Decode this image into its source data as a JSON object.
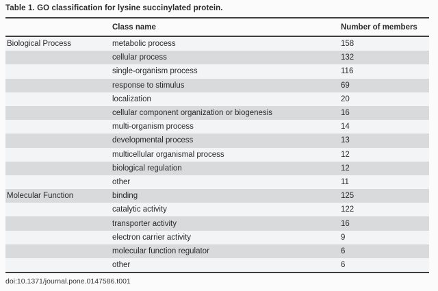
{
  "table": {
    "title": "Table 1. GO classification for lysine succinylated protein.",
    "columns": {
      "category": "",
      "class_name": "Class name",
      "members": "Number of members"
    },
    "rows": [
      {
        "category": "Biological Process",
        "class_name": "metabolic process",
        "members": "158"
      },
      {
        "category": "",
        "class_name": "cellular process",
        "members": "132"
      },
      {
        "category": "",
        "class_name": "single-organism process",
        "members": "116"
      },
      {
        "category": "",
        "class_name": "response to stimulus",
        "members": "69"
      },
      {
        "category": "",
        "class_name": "localization",
        "members": "20"
      },
      {
        "category": "",
        "class_name": "cellular component organization or biogenesis",
        "members": "16"
      },
      {
        "category": "",
        "class_name": "multi-organism process",
        "members": "14"
      },
      {
        "category": "",
        "class_name": "developmental process",
        "members": "13"
      },
      {
        "category": "",
        "class_name": "multicellular organismal process",
        "members": "12"
      },
      {
        "category": "",
        "class_name": "biological regulation",
        "members": "12"
      },
      {
        "category": "",
        "class_name": "other",
        "members": "11"
      },
      {
        "category": "Molecular Function",
        "class_name": "binding",
        "members": "125"
      },
      {
        "category": "",
        "class_name": "catalytic activity",
        "members": "122"
      },
      {
        "category": "",
        "class_name": "transporter activity",
        "members": "16"
      },
      {
        "category": "",
        "class_name": "electron carrier activity",
        "members": "9"
      },
      {
        "category": "",
        "class_name": "molecular function regulator",
        "members": "6"
      },
      {
        "category": "",
        "class_name": "other",
        "members": "6"
      }
    ],
    "footer": "doi:10.1371/journal.pone.0147586.t001"
  },
  "colors": {
    "stripe_light": "#f3f4f6",
    "stripe_dark": "#d8dadb",
    "rule": "#3d3d3d",
    "text": "#2b2b2b",
    "page_bg": "#fbfbfc"
  }
}
